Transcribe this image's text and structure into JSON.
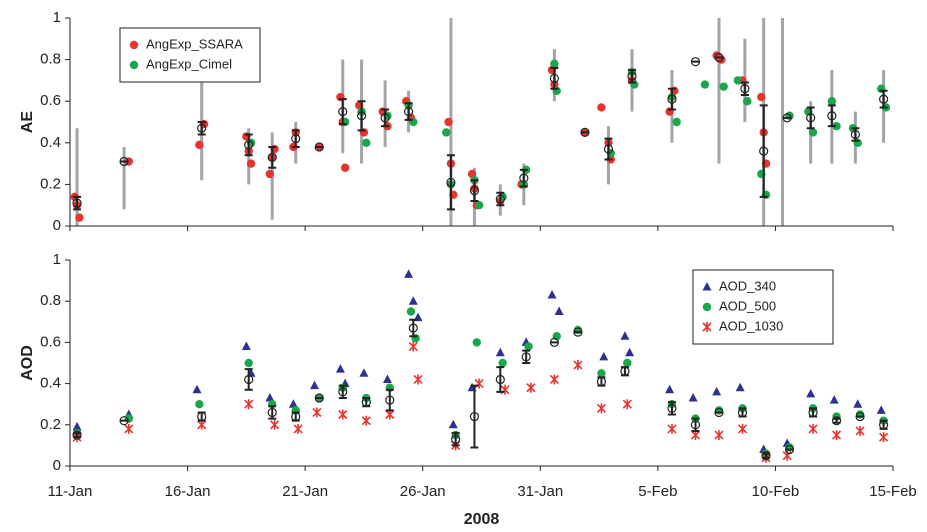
{
  "chart_data": [
    {
      "type": "scatter",
      "ylabel": "AE",
      "xlim": [
        11,
        46
      ],
      "xticks": [
        11,
        16,
        21,
        26,
        31,
        36,
        41,
        46
      ],
      "ylim": [
        0,
        1
      ],
      "yticks": [
        0,
        0.2,
        0.4,
        0.6,
        0.8,
        1
      ],
      "legend": "upper left",
      "ranges": {
        "color": "#a0a5aa",
        "x": [
          11.3,
          13.3,
          16.6,
          18.6,
          19.6,
          20.6,
          22.6,
          23.4,
          24.4,
          25.4,
          27.2,
          28.2,
          29.3,
          30.3,
          31.6,
          33.9,
          34.9,
          36.6,
          38.6,
          39.7,
          40.5,
          41.3,
          42.5,
          43.4,
          44.4,
          45.6
        ],
        "low": [
          0,
          0.08,
          0.22,
          0.2,
          0.03,
          0.3,
          0.35,
          0.3,
          0.38,
          0.45,
          0,
          0,
          0.05,
          0.1,
          0.6,
          0.2,
          0.55,
          0.4,
          0.3,
          0.5,
          0,
          0,
          0.3,
          0.3,
          0.3,
          0.4
        ],
        "high": [
          0.47,
          0.38,
          0.7,
          0.47,
          0.45,
          0.5,
          0.8,
          0.8,
          0.7,
          0.65,
          1,
          0.28,
          0.2,
          0.3,
          0.85,
          0.48,
          0.85,
          0.75,
          1,
          0.9,
          1,
          1,
          0.6,
          0.75,
          0.55,
          0.75
        ]
      },
      "series": [
        {
          "name": "AngExp_SSARA",
          "color": "#e8332f",
          "marker": "circle",
          "x": [
            11.2,
            11.3,
            11.4,
            13.5,
            16.5,
            16.7,
            18.5,
            18.6,
            18.7,
            19.5,
            19.6,
            19.7,
            20.5,
            20.6,
            21.6,
            22.5,
            22.6,
            22.7,
            23.3,
            23.5,
            24.3,
            24.5,
            25.3,
            25.5,
            27.1,
            27.2,
            27.3,
            28.1,
            28.2,
            28.3,
            29.3,
            30.2,
            31.5,
            31.6,
            32.9,
            33.6,
            33.9,
            34.0,
            34.9,
            36.5,
            36.7,
            38.5,
            38.7,
            39.6,
            39.8,
            40.4,
            40.5,
            40.6
          ],
          "values": [
            0.14,
            0.1,
            0.04,
            0.31,
            0.39,
            0.49,
            0.43,
            0.36,
            0.3,
            0.25,
            0.33,
            0.37,
            0.38,
            0.45,
            0.38,
            0.62,
            0.5,
            0.28,
            0.58,
            0.45,
            0.55,
            0.48,
            0.6,
            0.52,
            0.5,
            0.3,
            0.15,
            0.25,
            0.18,
            0.1,
            0.12,
            0.2,
            0.75,
            0.68,
            0.45,
            0.57,
            0.4,
            0.32,
            0.7,
            0.55,
            0.65,
            0.82,
            0.8,
            0.7,
            0.6,
            0.62,
            0.45,
            0.3
          ]
        },
        {
          "name": "AngExp_Cimel",
          "color": "#1aa64a",
          "marker": "circle",
          "x": [
            18.7,
            22.7,
            23.4,
            23.6,
            24.5,
            25.4,
            25.6,
            27.0,
            27.2,
            28.2,
            28.4,
            29.4,
            30.3,
            30.4,
            31.6,
            31.7,
            34.0,
            34.9,
            35.0,
            36.6,
            36.8,
            38.0,
            38.8,
            39.4,
            39.8,
            40.4,
            40.6,
            41.6,
            42.4,
            42.6,
            43.4,
            43.6,
            44.3,
            44.5,
            45.5,
            45.7
          ],
          "values": [
            0.4,
            0.5,
            0.55,
            0.4,
            0.53,
            0.58,
            0.5,
            0.45,
            0.2,
            0.22,
            0.1,
            0.14,
            0.2,
            0.27,
            0.78,
            0.65,
            0.35,
            0.74,
            0.68,
            0.62,
            0.5,
            0.68,
            0.67,
            0.7,
            0.6,
            0.25,
            0.15,
            0.53,
            0.55,
            0.45,
            0.6,
            0.48,
            0.47,
            0.4,
            0.66,
            0.57
          ]
        }
      ],
      "means": {
        "color": "#222222",
        "x": [
          11.3,
          13.3,
          16.6,
          18.6,
          19.6,
          20.6,
          21.6,
          22.6,
          23.4,
          24.4,
          25.4,
          27.2,
          28.2,
          29.3,
          30.3,
          31.6,
          32.9,
          33.9,
          34.9,
          36.6,
          37.6,
          38.6,
          39.7,
          40.5,
          41.5,
          42.5,
          43.4,
          44.4,
          45.6
        ],
        "values": [
          0.11,
          0.31,
          0.47,
          0.39,
          0.33,
          0.42,
          0.38,
          0.55,
          0.53,
          0.52,
          0.55,
          0.21,
          0.17,
          0.13,
          0.23,
          0.71,
          0.45,
          0.37,
          0.72,
          0.61,
          0.79,
          0.81,
          0.66,
          0.36,
          0.52,
          0.52,
          0.53,
          0.44,
          0.61
        ],
        "errors": [
          0.03,
          0,
          0.03,
          0.05,
          0.05,
          0.04,
          0,
          0.06,
          0.07,
          0.04,
          0.04,
          0.13,
          0.05,
          0.03,
          0.04,
          0.05,
          0,
          0.05,
          0.03,
          0.05,
          0,
          0,
          0.03,
          0.22,
          0,
          0.05,
          0.05,
          0.03,
          0.04
        ]
      }
    },
    {
      "type": "scatter",
      "ylabel": "AOD",
      "xlabel": "2008",
      "xlim": [
        11,
        46
      ],
      "xticks": [
        {
          "value": 11,
          "label": "11-Jan"
        },
        {
          "value": 16,
          "label": "16-Jan"
        },
        {
          "value": 21,
          "label": "21-Jan"
        },
        {
          "value": 26,
          "label": "26-Jan"
        },
        {
          "value": 31,
          "label": "31-Jan"
        },
        {
          "value": 36,
          "label": "5-Feb"
        },
        {
          "value": 41,
          "label": "10-Feb"
        },
        {
          "value": 46,
          "label": "15-Feb"
        }
      ],
      "ylim": [
        0,
        1
      ],
      "yticks": [
        0,
        0.2,
        0.4,
        0.6,
        0.8,
        1
      ],
      "legend": "upper right",
      "series": [
        {
          "name": "AOD_340",
          "color": "#2e3192",
          "marker": "triangle",
          "x": [
            11.3,
            13.5,
            16.4,
            18.5,
            18.7,
            19.5,
            20.5,
            21.4,
            22.5,
            22.7,
            23.5,
            24.5,
            25.4,
            25.6,
            25.8,
            27.3,
            28.1,
            29.3,
            30.4,
            31.5,
            31.8,
            32.6,
            33.7,
            34.6,
            34.8,
            36.5,
            37.5,
            38.5,
            39.5,
            40.5,
            41.5,
            42.5,
            43.5,
            44.5,
            45.5
          ],
          "values": [
            0.19,
            0.25,
            0.37,
            0.58,
            0.45,
            0.33,
            0.3,
            0.39,
            0.47,
            0.4,
            0.45,
            0.42,
            0.93,
            0.8,
            0.72,
            0.2,
            0.38,
            0.55,
            0.6,
            0.83,
            0.75,
            0.66,
            0.53,
            0.63,
            0.55,
            0.37,
            0.33,
            0.36,
            0.38,
            0.08,
            0.11,
            0.35,
            0.32,
            0.3,
            0.27
          ]
        },
        {
          "name": "AOD_500",
          "color": "#1aa64a",
          "marker": "circle",
          "x": [
            11.3,
            13.5,
            16.5,
            18.6,
            19.6,
            20.6,
            21.6,
            22.6,
            23.6,
            24.6,
            25.5,
            25.7,
            27.4,
            28.3,
            29.4,
            30.5,
            31.7,
            32.6,
            33.6,
            34.7,
            36.6,
            37.6,
            38.6,
            39.6,
            40.6,
            41.6,
            42.6,
            43.6,
            44.6,
            45.6
          ],
          "values": [
            0.16,
            0.23,
            0.3,
            0.5,
            0.3,
            0.27,
            0.33,
            0.38,
            0.33,
            0.38,
            0.75,
            0.62,
            0.15,
            0.6,
            0.5,
            0.58,
            0.63,
            0.66,
            0.45,
            0.5,
            0.3,
            0.23,
            0.27,
            0.28,
            0.06,
            0.09,
            0.28,
            0.24,
            0.25,
            0.22
          ]
        },
        {
          "name": "AOD_1030",
          "color": "#e8332f",
          "marker": "star",
          "x": [
            11.3,
            13.5,
            16.6,
            18.6,
            19.7,
            20.7,
            21.5,
            22.6,
            23.6,
            24.6,
            25.6,
            25.8,
            27.4,
            28.4,
            29.5,
            30.6,
            31.6,
            32.6,
            33.6,
            34.7,
            36.6,
            37.6,
            38.6,
            39.6,
            40.6,
            41.5,
            42.6,
            43.6,
            44.6,
            45.6
          ],
          "values": [
            0.14,
            0.18,
            0.2,
            0.3,
            0.2,
            0.18,
            0.26,
            0.25,
            0.22,
            0.25,
            0.58,
            0.42,
            0.1,
            0.4,
            0.37,
            0.38,
            0.42,
            0.49,
            0.28,
            0.3,
            0.18,
            0.15,
            0.15,
            0.18,
            0.04,
            0.05,
            0.18,
            0.15,
            0.17,
            0.14
          ]
        }
      ],
      "means": {
        "color": "#222222",
        "x": [
          11.3,
          13.3,
          16.6,
          18.6,
          19.6,
          20.6,
          21.6,
          22.6,
          23.6,
          24.6,
          25.6,
          27.4,
          28.2,
          29.3,
          30.4,
          31.6,
          32.6,
          33.6,
          34.6,
          36.6,
          37.6,
          38.6,
          39.6,
          40.6,
          41.6,
          42.6,
          43.6,
          44.6,
          45.6
        ],
        "values": [
          0.15,
          0.22,
          0.24,
          0.42,
          0.26,
          0.24,
          0.33,
          0.36,
          0.31,
          0.32,
          0.67,
          0.13,
          0.24,
          0.42,
          0.53,
          0.6,
          0.65,
          0.41,
          0.46,
          0.28,
          0.2,
          0.26,
          0.26,
          0.05,
          0.08,
          0.26,
          0.22,
          0.24,
          0.2
        ],
        "errors": [
          0.01,
          0,
          0.02,
          0.05,
          0.03,
          0.02,
          0,
          0.03,
          0.02,
          0.05,
          0.04,
          0.03,
          0.15,
          0.06,
          0.03,
          0,
          0,
          0.02,
          0.02,
          0.03,
          0.03,
          0,
          0.02,
          0.01,
          0,
          0.02,
          0.01,
          0,
          0.02
        ]
      }
    }
  ]
}
